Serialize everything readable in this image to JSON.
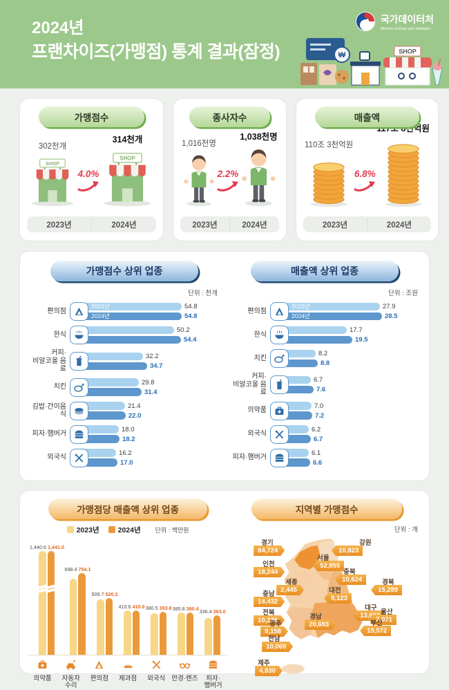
{
  "header": {
    "year_line": "2024년",
    "title_line": "프랜차이즈(가맹점) 통계 결과(잠정)",
    "logo_name": "국가데이터처",
    "logo_subtitle": "Ministry of Data and Statistics",
    "illustration_shop_sign": "SHOP",
    "won_symbol": "₩"
  },
  "colors": {
    "header_bg": "#9cc88c",
    "red_accent": "#e23b50",
    "blue_2023": "#a9d2ef",
    "blue_2024": "#5e97cd",
    "gold_2023": "#f8d685",
    "orange_2024": "#eb9a3b",
    "map_highlight": "#ee9133"
  },
  "stats": [
    {
      "title": "가맹점수",
      "icon": "storefront-icon",
      "prev_value": "302천개",
      "curr_value": "314천개",
      "prev_year": "2023년",
      "curr_year": "2024년",
      "change": "4.0%",
      "shop_sign": "SHOP"
    },
    {
      "title": "종사자수",
      "icon": "worker-icon",
      "prev_value": "1,016천명",
      "curr_value": "1,038천명",
      "prev_year": "2023년",
      "curr_year": "2024년",
      "change": "2.2%"
    },
    {
      "title": "매출액",
      "icon": "coin-stack-icon",
      "prev_value": "110조 3천억원",
      "curr_value": "117조 8천억원",
      "prev_year": "2023년",
      "curr_year": "2024년",
      "change": "6.8%"
    }
  ],
  "chart_data": [
    {
      "type": "bar",
      "orientation": "horizontal",
      "title": "가맹점수 상위 업종",
      "unit_label": "단위 : 천개",
      "legend_position": "inside-first-bars",
      "categories": [
        {
          "label_lines": [
            "편의점"
          ],
          "icon": "convenience-store-icon"
        },
        {
          "label_lines": [
            "한식"
          ],
          "icon": "korean-food-icon"
        },
        {
          "label_lines": [
            "커피·",
            "비알코올 음료"
          ],
          "icon": "beverage-cup-icon"
        },
        {
          "label_lines": [
            "치킨"
          ],
          "icon": "chicken-icon"
        },
        {
          "label_lines": [
            "김밥·간이음식"
          ],
          "icon": "gimbap-icon"
        },
        {
          "label_lines": [
            "피자·햄버거"
          ],
          "icon": "burger-icon"
        },
        {
          "label_lines": [
            "외국식"
          ],
          "icon": "fork-knife-icon"
        }
      ],
      "series": [
        {
          "name": "2023년",
          "color": "#a9d2ef",
          "values": [
            54.8,
            50.2,
            32.2,
            29.8,
            21.4,
            18.0,
            16.2
          ]
        },
        {
          "name": "2024년",
          "color": "#5e97cd",
          "values": [
            54.8,
            54.4,
            34.7,
            31.4,
            22.0,
            18.2,
            17.0
          ]
        }
      ]
    },
    {
      "type": "bar",
      "orientation": "horizontal",
      "title": "매출액 상위 업종",
      "unit_label": "단위 : 조원",
      "legend_position": "inside-first-bars",
      "categories": [
        {
          "label_lines": [
            "편의점"
          ],
          "icon": "convenience-store-icon"
        },
        {
          "label_lines": [
            "한식"
          ],
          "icon": "korean-food-icon"
        },
        {
          "label_lines": [
            "치킨"
          ],
          "icon": "chicken-icon"
        },
        {
          "label_lines": [
            "커피·",
            "비알코올 음료"
          ],
          "icon": "beverage-cup-icon"
        },
        {
          "label_lines": [
            "의약품"
          ],
          "icon": "first-aid-icon"
        },
        {
          "label_lines": [
            "외국식"
          ],
          "icon": "fork-knife-icon"
        },
        {
          "label_lines": [
            "피자·햄버거"
          ],
          "icon": "burger-icon"
        }
      ],
      "series": [
        {
          "name": "2023년",
          "color": "#a9d2ef",
          "values": [
            27.9,
            17.7,
            8.2,
            6.7,
            7.0,
            6.2,
            6.1
          ]
        },
        {
          "name": "2024년",
          "color": "#5e97cd",
          "values": [
            28.5,
            19.5,
            8.8,
            7.6,
            7.2,
            6.7,
            6.6
          ]
        }
      ]
    },
    {
      "type": "bar",
      "orientation": "vertical",
      "title": "가맹점당 매출액 상위 업종",
      "unit_label": "단위 : 백만원",
      "broken_axis_over": 1000,
      "categories": [
        {
          "label_lines": [
            "의약품"
          ],
          "icon": "first-aid-icon"
        },
        {
          "label_lines": [
            "자동차",
            "수리"
          ],
          "icon": "car-repair-icon"
        },
        {
          "label_lines": [
            "편의점"
          ],
          "icon": "convenience-store-icon"
        },
        {
          "label_lines": [
            "제과점"
          ],
          "icon": "bakery-icon"
        },
        {
          "label_lines": [
            "외국식"
          ],
          "icon": "fork-knife-icon"
        },
        {
          "label_lines": [
            "안경·렌즈"
          ],
          "icon": "glasses-icon"
        },
        {
          "label_lines": [
            "피자·",
            "햄버거"
          ],
          "icon": "burger-icon"
        }
      ],
      "series": [
        {
          "name": "2023년",
          "color": "#f8d685",
          "values": [
            1440.6,
            698.4,
            509.7,
            410.6,
            380.5,
            385.8,
            336.4
          ]
        },
        {
          "name": "2024년",
          "color": "#eb9a3b",
          "values": [
            1441.0,
            754.1,
            520.2,
            410.6,
            393.8,
            390.4,
            363.0
          ]
        }
      ]
    },
    {
      "type": "map",
      "title": "지역별 가맹점수",
      "unit_label": "단위 : 개",
      "regions": [
        {
          "name": "경기",
          "value": "84,724"
        },
        {
          "name": "서울",
          "value": "52,855"
        },
        {
          "name": "인천",
          "value": "18,244"
        },
        {
          "name": "강원",
          "value": "10,823"
        },
        {
          "name": "충북",
          "value": "10,624"
        },
        {
          "name": "경북",
          "value": "15,289"
        },
        {
          "name": "세종",
          "value": "2,445"
        },
        {
          "name": "대전",
          "value": "9,123"
        },
        {
          "name": "충남",
          "value": "14,432"
        },
        {
          "name": "대구",
          "value": "13,692"
        },
        {
          "name": "전북",
          "value": "10,236"
        },
        {
          "name": "울산",
          "value": "7,071"
        },
        {
          "name": "광주",
          "value": "9,158"
        },
        {
          "name": "경남",
          "value": "20,693"
        },
        {
          "name": "부산",
          "value": "19,572"
        },
        {
          "name": "전남",
          "value": "10,069"
        },
        {
          "name": "제주",
          "value": "4,830"
        }
      ]
    }
  ]
}
